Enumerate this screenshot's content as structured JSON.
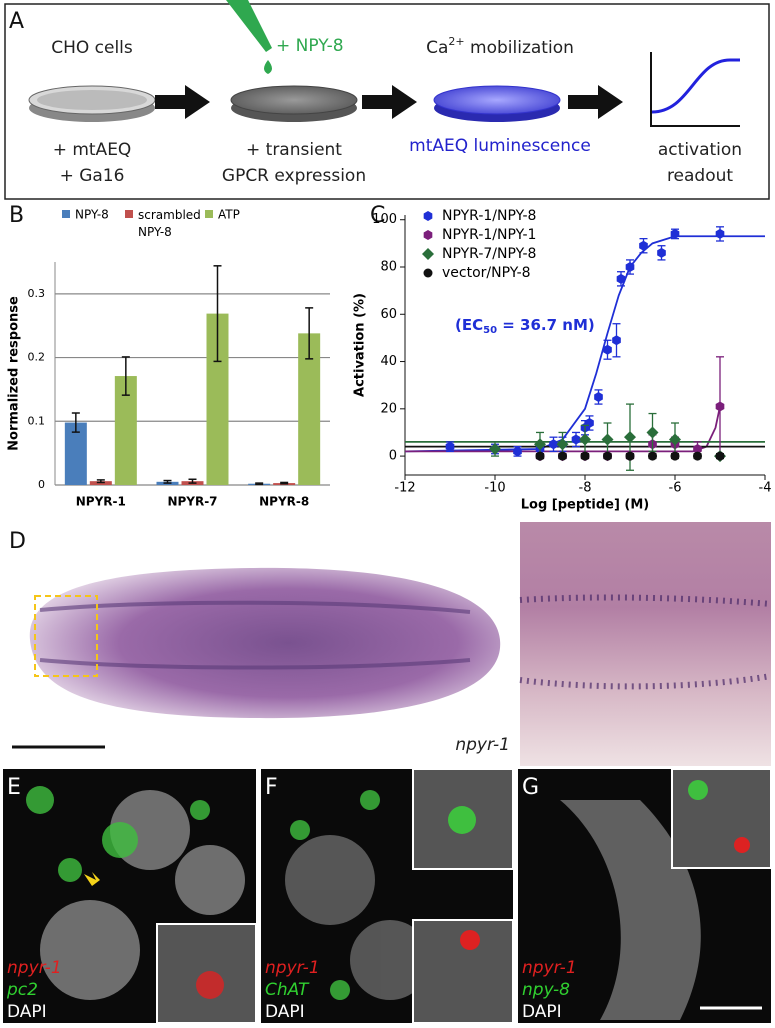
{
  "panels": {
    "a": {
      "label": "A",
      "cells": "CHO cells",
      "reagent1": "+ mtAEQ",
      "reagent2": "+ Ga16",
      "peptide": "+ NPY-8",
      "step2a": "+ transient",
      "step2b": "GPCR expression",
      "ca": "Ca",
      "ca_sup": "2+",
      "ca_rest": " mobilization",
      "luminescence": "mtAEQ luminescence",
      "readout1": "activation",
      "readout2": "readout"
    },
    "b": {
      "label": "B"
    },
    "c": {
      "label": "C"
    },
    "d": {
      "label": "D",
      "gene": "npyr-1"
    },
    "e": {
      "label": "E",
      "red": "npyr-1",
      "green": "pc2",
      "blue": "DAPI"
    },
    "f": {
      "label": "F",
      "red": "npyr-1",
      "green": "ChAT",
      "blue": "DAPI"
    },
    "g": {
      "label": "G",
      "red": "npyr-1",
      "green": "npy-8",
      "blue": "DAPI"
    }
  },
  "chart_data": [
    {
      "type": "bar",
      "y_label": "Normalized response",
      "categories": [
        "NPYR-1",
        "NPYR-7",
        "NPYR-8"
      ],
      "series": [
        {
          "name": "NPY-8",
          "color": "#4a7ebb",
          "values": [
            0.098,
            0.005,
            0.002
          ],
          "errors": [
            0.015,
            0.002,
            0.001
          ]
        },
        {
          "name": "scrambled NPY-8",
          "color": "#c0504d",
          "values": [
            0.006,
            0.006,
            0.003
          ],
          "errors": [
            0.002,
            0.003,
            0.001
          ]
        },
        {
          "name": "ATP",
          "color": "#9bbb59",
          "values": [
            0.171,
            0.269,
            0.238
          ],
          "errors": [
            0.03,
            0.075,
            0.04
          ]
        }
      ],
      "ylim": [
        0,
        0.35
      ],
      "yticks": [
        0,
        0.1,
        0.2,
        0.3
      ],
      "grid": true
    },
    {
      "type": "scatter",
      "x_label": "Log [peptide] (M)",
      "y_label": "Activation (%)",
      "annotation": "(EC",
      "annotation_sub": "50",
      "annotation_rest": " = 36.7 nM)",
      "series": [
        {
          "name": "NPYR-1/NPY-8",
          "color": "#1f2fd6",
          "marker": "hexagon",
          "x": [
            -11,
            -10,
            -9.5,
            -9,
            -8.7,
            -8.5,
            -8.2,
            -8,
            -7.9,
            -7.7,
            -7.5,
            -7.3,
            -7.2,
            -7,
            -6.7,
            -6.3,
            -6,
            -5
          ],
          "values": [
            4,
            3,
            2,
            3,
            5,
            5,
            7,
            12,
            14,
            25,
            45,
            49,
            75,
            80,
            89,
            86,
            94,
            94
          ],
          "errors": [
            2,
            2,
            2,
            2,
            3,
            3,
            3,
            3,
            3,
            3,
            4,
            7,
            3,
            3,
            3,
            3,
            2,
            3
          ],
          "fit_x": [
            -12,
            -9,
            -8.5,
            -8,
            -7.75,
            -7.5,
            -7.25,
            -7,
            -6.75,
            -6.5,
            -6,
            -5,
            -4
          ],
          "fit_values": [
            2,
            3,
            7,
            20,
            35,
            52,
            68,
            80,
            86,
            90,
            93,
            93,
            93
          ]
        },
        {
          "name": "NPYR-1/NPY-1",
          "color": "#7b1f7b",
          "marker": "hexagon",
          "x": [
            -9,
            -8.5,
            -8,
            -7.5,
            -7,
            -6.5,
            -6,
            -5.5,
            -5
          ],
          "values": [
            0,
            0,
            0,
            0,
            0,
            5,
            5,
            3,
            21
          ],
          "errors": [
            1,
            1,
            1,
            1,
            1,
            4,
            3,
            3,
            21
          ],
          "fit_x": [
            -12,
            -5.6,
            -5.3,
            -5.1,
            -5
          ],
          "fit_values": [
            2,
            2,
            4,
            12,
            21
          ]
        },
        {
          "name": "NPYR-7/NPY-8",
          "color": "#2a6e3a",
          "marker": "diamond",
          "x": [
            -10,
            -9,
            -8.5,
            -8,
            -7.5,
            -7,
            -6.5,
            -6,
            -5
          ],
          "values": [
            3,
            5,
            5,
            7,
            7,
            8,
            10,
            7,
            0
          ],
          "errors": [
            3,
            5,
            5,
            6,
            7,
            14,
            8,
            7,
            1
          ],
          "fit_x": [
            -12,
            -4
          ],
          "fit_values": [
            6,
            6
          ]
        },
        {
          "name": "vector/NPY-8",
          "color": "#111111",
          "marker": "circle",
          "x": [
            -9,
            -8.5,
            -8,
            -7.5,
            -7,
            -6.5,
            -6,
            -5.5,
            -5
          ],
          "values": [
            0,
            0,
            0,
            0,
            0,
            0,
            0,
            0,
            0
          ],
          "errors": [
            1,
            1,
            1,
            1,
            1,
            1,
            1,
            1,
            1
          ],
          "fit_x": [
            -12,
            -4
          ],
          "fit_values": [
            4,
            4
          ]
        }
      ],
      "xlim": [
        -12,
        -4
      ],
      "xticks": [
        -12,
        -10,
        -8,
        -6,
        -4
      ],
      "ylim": [
        -8,
        102
      ],
      "yticks": [
        0,
        20,
        40,
        60,
        80,
        100
      ]
    }
  ]
}
